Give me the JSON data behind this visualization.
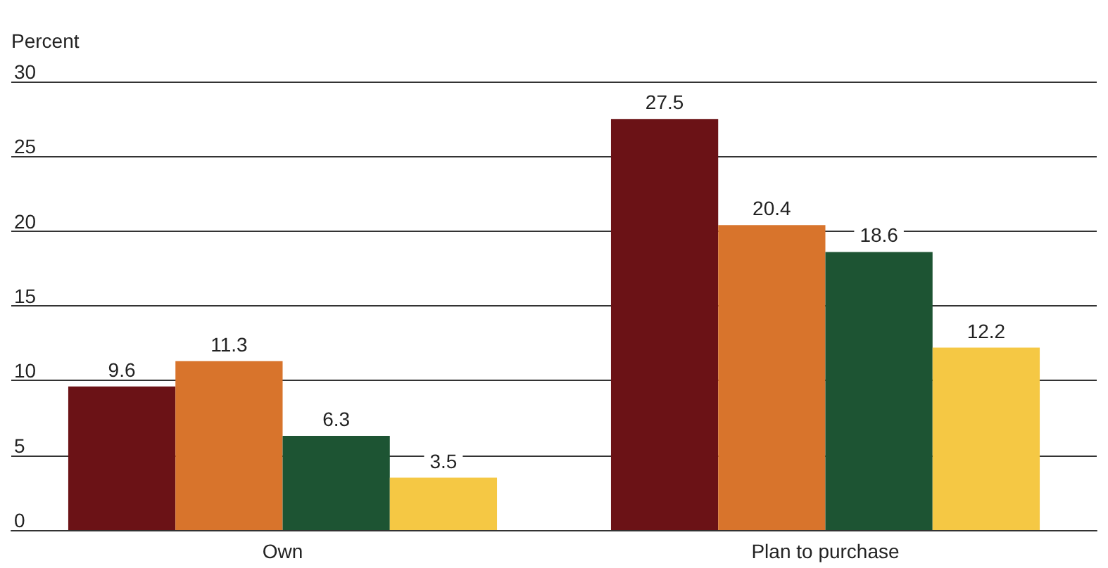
{
  "chart_data": {
    "type": "bar",
    "ylabel": "Percent",
    "categories": [
      "Own",
      "Plan to purchase"
    ],
    "series": [
      {
        "color": "#6b1216",
        "values": [
          9.6,
          27.5
        ]
      },
      {
        "color": "#d8742c",
        "values": [
          11.3,
          20.4
        ]
      },
      {
        "color": "#1d5433",
        "values": [
          6.3,
          18.6
        ]
      },
      {
        "color": "#f5c844",
        "values": [
          3.5,
          12.2
        ]
      }
    ],
    "ylim": [
      0,
      30
    ],
    "yticks": [
      0,
      5,
      10,
      15,
      20,
      25,
      30
    ],
    "grid": "y",
    "data_labels": true
  }
}
